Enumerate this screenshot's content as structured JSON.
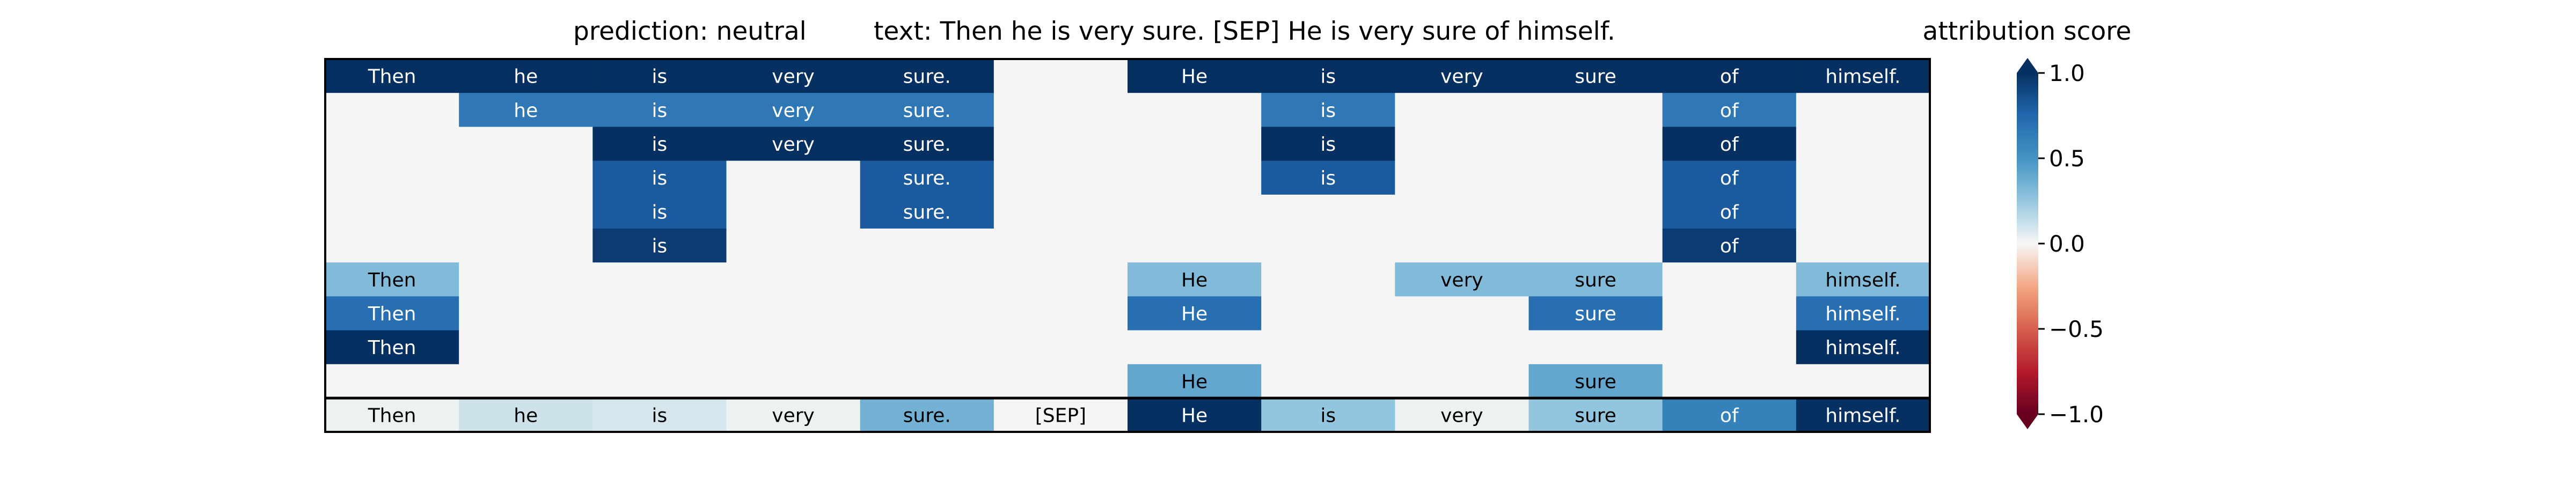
{
  "header": {
    "prediction": "prediction:  neutral",
    "text": "text:  Then he is very sure. [SEP] He is very sure of himself.",
    "colorbar_title": "attribution score"
  },
  "chart_data": {
    "type": "heatmap",
    "title": "",
    "columns": [
      "Then",
      "he",
      "is",
      "very",
      "sure.",
      "[SEP]",
      "He",
      "is",
      "very",
      "sure",
      "of",
      "himself."
    ],
    "row_labels": [],
    "rows": [
      [
        1.0,
        1.0,
        1.0,
        1.0,
        1.0,
        0,
        1.0,
        1.0,
        1.0,
        1.0,
        1.0,
        1.0
      ],
      [
        0,
        0.65,
        0.65,
        0.65,
        0.65,
        0,
        0,
        0.65,
        0,
        0,
        0.65,
        0
      ],
      [
        0,
        0,
        1.0,
        1.0,
        1.0,
        0,
        0,
        1.0,
        0,
        0,
        1.0,
        0
      ],
      [
        0,
        0,
        0.8,
        0,
        0.8,
        0,
        0,
        0.8,
        0,
        0,
        0.8,
        0
      ],
      [
        0,
        0,
        0.8,
        0,
        0.8,
        0,
        0,
        0,
        0,
        0,
        0.8,
        0
      ],
      [
        0,
        0,
        0.95,
        0,
        0,
        0,
        0,
        0,
        0,
        0,
        0.95,
        0
      ],
      [
        0.3,
        0,
        0,
        0,
        0,
        0,
        0.3,
        0,
        0.3,
        0.3,
        0,
        0.3
      ],
      [
        0.7,
        0,
        0,
        0,
        0,
        0,
        0.7,
        0,
        0,
        0.7,
        0,
        0.7
      ],
      [
        1.0,
        0,
        0,
        0,
        0,
        0,
        0,
        0,
        0,
        0,
        0,
        1.0
      ],
      [
        0,
        0,
        0,
        0,
        0,
        0,
        0.4,
        0,
        0,
        0.4,
        0,
        0
      ]
    ],
    "summary_row": [
      0.02,
      0.1,
      0.08,
      0.02,
      0.35,
      0,
      1.0,
      0.25,
      0.02,
      0.25,
      0.6,
      1.0
    ],
    "colorbar": {
      "range": [
        -1.0,
        1.0
      ],
      "ticks": [
        "1.0",
        "0.5",
        "0.0",
        "−0.5",
        "−1.0"
      ],
      "tick_values": [
        1.0,
        0.5,
        0.0,
        -0.5,
        -1.0
      ],
      "extend": "both",
      "colormap": "RdBu"
    },
    "colors": {
      "background_cell": "#f4f5f4",
      "grid_line": "#000000"
    }
  }
}
